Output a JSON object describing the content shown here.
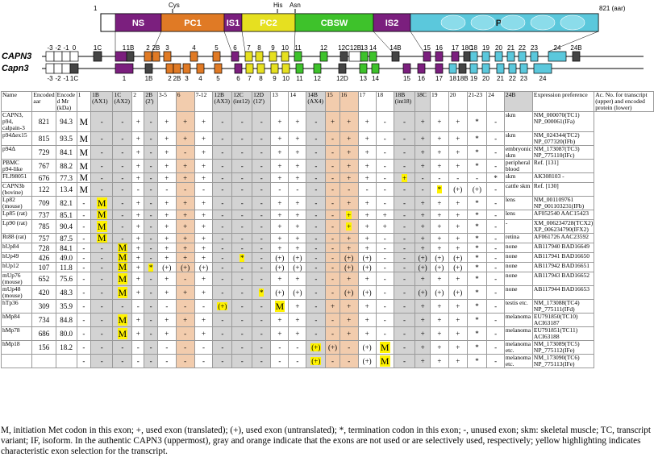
{
  "diagram": {
    "domains": [
      {
        "label": "NS",
        "color": "#7b1f7e",
        "text_color": "#ffffff"
      },
      {
        "label": "PC1",
        "color": "#e07a25",
        "text_color": "#ffffff"
      },
      {
        "label": "IS1",
        "color": "#7b1f7e",
        "text_color": "#ffffff"
      },
      {
        "label": "PC2",
        "color": "#e6e020",
        "text_color": "#ffffff"
      },
      {
        "label": "CBSW",
        "color": "#3ec22b",
        "text_color": "#ffffff"
      },
      {
        "label": "IS2",
        "color": "#7b1f7e",
        "text_color": "#ffffff"
      },
      {
        "label": "PEF",
        "color": "#5bc8dc",
        "text_color": "#1a1a1a"
      }
    ],
    "start_label": "1",
    "end_label": "821 (aar)",
    "residues": [
      "Cys",
      "His",
      "Asn"
    ],
    "gene_labels": [
      "CAPN3",
      "Capn3"
    ],
    "top_exons": [
      "-3",
      "-2",
      "-1",
      "0",
      "1C",
      "1",
      "1B",
      "2",
      "2B",
      "3",
      "4",
      "5",
      "6",
      "7",
      "8",
      "9",
      "10",
      "11",
      "12",
      "12C",
      "12B",
      "13",
      "14",
      "14B",
      "15",
      "16",
      "17",
      "18C",
      "18",
      "19",
      "20",
      "21",
      "22",
      "23",
      "24",
      "24B"
    ],
    "bottom_exons": [
      "-3",
      "-2",
      "-1",
      "1C",
      "1",
      "1B",
      "2",
      "2B",
      "3",
      "4",
      "5",
      "6",
      "7",
      "8",
      "9",
      "10",
      "11",
      "12",
      "12D",
      "13",
      "14",
      "15",
      "16",
      "17",
      "18",
      "18B",
      "19",
      "20",
      "21",
      "22",
      "23",
      "24"
    ]
  },
  "table": {
    "headers": [
      "Name",
      "Encoded aar",
      "Encode d Mr (kDa)",
      "1",
      "1B (AX1)",
      "1C (AX2)",
      "2",
      "2B (2')",
      "3-5",
      "6",
      "7-12",
      "12B (AX3)",
      "12C (int12)",
      "12D (12')",
      "13",
      "14",
      "14B (AX4)",
      "15",
      "16",
      "17",
      "18",
      "18B (int18)",
      "18C",
      "19",
      "20",
      "21-23",
      "24",
      "24B",
      "Expression preference",
      "Ac. No. for transcript (upper) and encoded protein (lower)"
    ],
    "rows": [
      {
        "name": "CAPN3, p94, calpain-3",
        "aar": "821",
        "mr": "94.3",
        "cells": [
          "M",
          "-",
          "-",
          "+",
          "-",
          "+",
          "+",
          "+",
          "-",
          "-",
          "-",
          "+",
          "+",
          "-",
          "+",
          "+",
          "+",
          "-",
          "-",
          "+",
          "+",
          "+",
          "*",
          "-"
        ],
        "expr": "skm",
        "acc": "NM_000070(TC1) NP_000061(IFa)"
      },
      {
        "name": "p94Δex15",
        "aar": "815",
        "mr": "93.5",
        "cells": [
          "M",
          "-",
          "-",
          "+",
          "-",
          "+",
          "+",
          "+",
          "-",
          "-",
          "-",
          "+",
          "+",
          "-",
          "-",
          "+",
          "+",
          "-",
          "-",
          "+",
          "+",
          "+",
          "*",
          "-"
        ],
        "expr": "skm",
        "acc": "NM_024344(TC2) NP_077320(IFb)"
      },
      {
        "name": "p94Δ",
        "aar": "729",
        "mr": "84.1",
        "cells": [
          "M",
          "-",
          "-",
          "+",
          "-",
          "+",
          "-",
          "+",
          "-",
          "-",
          "-",
          "+",
          "+",
          "-",
          "-",
          "+",
          "+",
          "-",
          "-",
          "+",
          "+",
          "+",
          "*",
          "-"
        ],
        "expr": "embryonic skm",
        "acc": "NM_173087(TC3) NP_775110(IFc)"
      },
      {
        "name": "PBMC p94-like",
        "aar": "767",
        "mr": "88.2",
        "cells": [
          "M",
          "-",
          "-",
          "+",
          "-",
          "+",
          "+",
          "+",
          "-",
          "-",
          "-",
          "+",
          "+",
          "-",
          "-",
          "+",
          "+",
          "-",
          "-",
          "+",
          "+",
          "+",
          "*",
          "-"
        ],
        "expr": "peripheral blood",
        "acc": "Ref. [131]"
      },
      {
        "name": "FLJ98051",
        "aar": "676",
        "mr": "77.3",
        "cells": [
          "M",
          "-",
          "-",
          "+",
          "-",
          "+",
          "+",
          "+",
          "-",
          "-",
          "-",
          "+",
          "+",
          "-",
          "-",
          "+",
          "+",
          "-",
          "+",
          "-",
          "-",
          "-",
          "-",
          "*"
        ],
        "expr": "skm",
        "acc": "AK308103 -"
      },
      {
        "name": "CAPN3b (bovine)",
        "aar": "122",
        "mr": "13.4",
        "cells": [
          "M",
          "-",
          "-",
          "-",
          "-",
          "-",
          "-",
          "-",
          "-",
          "-",
          "-",
          "-",
          "-",
          "-",
          "-",
          "-",
          "-",
          "-",
          "-",
          "-",
          "*",
          "(+)",
          "(+)",
          "-"
        ],
        "expr": "cattle skm",
        "acc": "Ref. [130]"
      },
      {
        "name": "Lp82 (mouse)",
        "aar": "709",
        "mr": "82.1",
        "cells": [
          "-",
          "M",
          "-",
          "+",
          "-",
          "+",
          "+",
          "+",
          "-",
          "-",
          "-",
          "+",
          "+",
          "-",
          "-",
          "+",
          "+",
          "-",
          "-",
          "+",
          "+",
          "+",
          "*",
          "-"
        ],
        "expr": "lens",
        "acc": "NM_001109761 NP_001103231(IFb)"
      },
      {
        "name": "Lp85 (rat)",
        "aar": "737",
        "mr": "85.1",
        "cells": [
          "-",
          "M",
          "-",
          "+",
          "-",
          "+",
          "+",
          "+",
          "-",
          "-",
          "-",
          "+",
          "+",
          "-",
          "-",
          "+",
          "+",
          "+",
          "-",
          "+",
          "+",
          "+",
          "*",
          "-"
        ],
        "expr": "lens",
        "acc": "AF052540 AAC15423"
      },
      {
        "name": "Lp90 (rat)",
        "aar": "785",
        "mr": "90.4",
        "cells": [
          "-",
          "M",
          "-",
          "+",
          "-",
          "+",
          "+",
          "+",
          "-",
          "-",
          "-",
          "+",
          "+",
          "-",
          "-",
          "+",
          "+",
          "+",
          "-",
          "+",
          "+",
          "+",
          "*",
          "-"
        ],
        "expr": "-",
        "acc": "XM_006234728(TCX2) XP_006234790(IFX2)"
      },
      {
        "name": "Rt88 (rat)",
        "aar": "757",
        "mr": "87.5",
        "cells": [
          "-",
          "M",
          "-",
          "+",
          "-",
          "+",
          "+",
          "+",
          "-",
          "-",
          "-",
          "+",
          "+",
          "-",
          "-",
          "+",
          "+",
          "-",
          "-",
          "+",
          "+",
          "+",
          "*",
          "-"
        ],
        "expr": "retina",
        "acc": "AF061726 AAC23592"
      },
      {
        "name": "hUp84",
        "aar": "728",
        "mr": "84.1",
        "cells": [
          "-",
          "-",
          "M",
          "+",
          "-",
          "+",
          "+",
          "+",
          "-",
          "-",
          "-",
          "+",
          "+",
          "-",
          "-",
          "+",
          "+",
          "-",
          "-",
          "+",
          "+",
          "+",
          "*",
          "-"
        ],
        "expr": "none",
        "acc": "AB117940 BAD16649"
      },
      {
        "name": "hUp49",
        "aar": "426",
        "mr": "49.0",
        "cells": [
          "-",
          "-",
          "M",
          "+",
          "-",
          "+",
          "+",
          "+",
          "-",
          "*",
          "-",
          "(+)",
          "(+)",
          "-",
          "-",
          "(+)",
          "(+)",
          "-",
          "-",
          "(+)",
          "(+)",
          "(+)",
          "*",
          "-"
        ],
        "expr": "none",
        "acc": "AB117941 BAD16650"
      },
      {
        "name": "hUp12",
        "aar": "107",
        "mr": "11.8",
        "cells": [
          "-",
          "-",
          "M",
          "+",
          "*",
          "(+)",
          "(+)",
          "(+)",
          "-",
          "-",
          "-",
          "(+)",
          "(+)",
          "-",
          "-",
          "(+)",
          "(+)",
          "-",
          "-",
          "(+)",
          "(+)",
          "(+)",
          "*",
          "-"
        ],
        "expr": "none",
        "acc": "AB117942 BAD16651"
      },
      {
        "name": "mUp76 (mouse)",
        "aar": "652",
        "mr": "75.6",
        "cells": [
          "-",
          "-",
          "M",
          "+",
          "-",
          "+",
          "-",
          "+",
          "-",
          "-",
          "-",
          "+",
          "+",
          "-",
          "-",
          "+",
          "+",
          "-",
          "-",
          "+",
          "+",
          "+",
          "*",
          "-"
        ],
        "expr": "none",
        "acc": "AB117943 BAD16652"
      },
      {
        "name": "mUp48 (mouse)",
        "aar": "420",
        "mr": "48.3",
        "cells": [
          "-",
          "-",
          "M",
          "+",
          "-",
          "+",
          "+",
          "+",
          "-",
          "-",
          "*",
          "(+)",
          "(+)",
          "-",
          "-",
          "(+)",
          "(+)",
          "-",
          "-",
          "(+)",
          "(+)",
          "(+)",
          "*",
          "-"
        ],
        "expr": "none",
        "acc": "AB117944 BAD16653"
      },
      {
        "name": "hTp36",
        "aar": "309",
        "mr": "35.9",
        "cells": [
          "-",
          "-",
          "-",
          "-",
          "-",
          "-",
          "-",
          "-",
          "(+)",
          "-",
          "-",
          "M",
          "+",
          "-",
          "+",
          "+",
          "+",
          "-",
          "-",
          "+",
          "+",
          "+",
          "*",
          "-"
        ],
        "expr": "testis etc.",
        "acc": "NM_173088(TC4) NP_775111(IFd)"
      },
      {
        "name": "hMp84",
        "aar": "734",
        "mr": "84.8",
        "cells": [
          "-",
          "-",
          "M",
          "+",
          "-",
          "+",
          "+",
          "+",
          "-",
          "-",
          "-",
          "+",
          "+",
          "-",
          "-",
          "+",
          "+",
          "-",
          "-",
          "+",
          "+",
          "+",
          "*",
          "-"
        ],
        "expr": "melanoma",
        "acc": "EU791850(TC10) ACI63187"
      },
      {
        "name": "hMp78",
        "aar": "686",
        "mr": "80.0",
        "cells": [
          "-",
          "-",
          "M",
          "+",
          "-",
          "+",
          "-",
          "+",
          "-",
          "-",
          "-",
          "+",
          "+",
          "-",
          "-",
          "+",
          "+",
          "-",
          "-",
          "+",
          "+",
          "+",
          "*",
          "-"
        ],
        "expr": "melanoma",
        "acc": "EU791851(TC11) ACI63188"
      },
      {
        "name": "hMp18",
        "aar": "156",
        "mr": "18.2",
        "cells": [
          "-",
          "-",
          "-",
          "-",
          "-",
          "-",
          "-",
          "-",
          "-",
          "-",
          "-",
          "-",
          "-",
          "(+)",
          "(+)",
          "-",
          "(+)",
          "M",
          "-",
          "+",
          "+",
          "+",
          "*",
          "-"
        ],
        "expr": "melanoma etc.",
        "acc": "NM_173089(TC5) NP_775112(IFe)"
      },
      {
        "name": "",
        "aar": "",
        "mr": "",
        "cells": [
          "-",
          "-",
          "-",
          "-",
          "-",
          "-",
          "-",
          "-",
          "-",
          "-",
          "-",
          "-",
          "-",
          "(+)",
          "-",
          "-",
          "(+)",
          "M",
          "-",
          "+",
          "+",
          "+",
          "*",
          "-"
        ],
        "expr": "melanoma etc.",
        "acc": "NM_173090(TC6) NP_775113(IFe)"
      }
    ]
  },
  "caption": "M, initiation Met codon in this exon; +, used exon (translated); (+), used exon (untranslated); *, termination codon in this exon; -, unused exon; skm: skeletal muscle; TC, transcript variant; IF, isoform. In the authentic CAPN3 (uppermost), gray and orange indicate that the exons are not used or are selectively used, respectively; yellow highlighting indicates characteristic exon selection for the transcript."
}
